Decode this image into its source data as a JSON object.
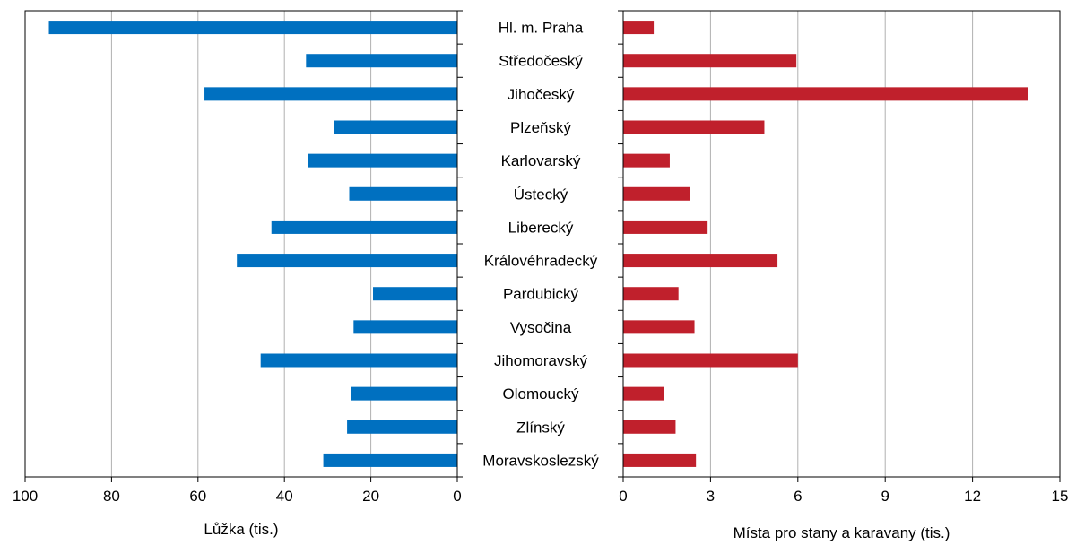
{
  "chart_data": [
    {
      "type": "bar",
      "orientation": "horizontal",
      "xlabel": "Lůžka (tis.)",
      "xlim": [
        0,
        100
      ],
      "x_reversed": true,
      "x_ticks": [
        "100",
        "80",
        "60",
        "40",
        "20",
        "0"
      ],
      "grid": "vertical",
      "color": "#0070c0",
      "categories": [
        "Hl. m. Praha",
        "Středočeský",
        "Jihočeský",
        "Plzeňský",
        "Karlovarský",
        "Ústecký",
        "Liberecký",
        "Královéhradecký",
        "Pardubický",
        "Vysočina",
        "Jihomoravský",
        "Olomoucký",
        "Zlínský",
        "Moravskoslezský"
      ],
      "values": [
        94.5,
        35,
        58.5,
        28.5,
        34.5,
        25,
        43,
        51,
        19.5,
        24,
        45.5,
        24.5,
        25.5,
        31
      ]
    },
    {
      "type": "bar",
      "orientation": "horizontal",
      "xlabel": "Místa pro stany a karavany (tis.)",
      "xlim": [
        0,
        15
      ],
      "x_ticks": [
        "0",
        "3",
        "6",
        "9",
        "12",
        "15"
      ],
      "grid": "vertical",
      "color": "#c0202c",
      "categories": [
        "Hl. m. Praha",
        "Středočeský",
        "Jihočeský",
        "Plzeňský",
        "Karlovarský",
        "Ústecký",
        "Liberecký",
        "Královéhradecký",
        "Pardubický",
        "Vysočina",
        "Jihomoravský",
        "Olomoucký",
        "Zlínský",
        "Moravskoslezský"
      ],
      "values": [
        1.05,
        5.95,
        13.9,
        4.85,
        1.6,
        2.3,
        2.9,
        5.3,
        1.9,
        2.45,
        6.0,
        1.4,
        1.8,
        2.5
      ]
    }
  ]
}
